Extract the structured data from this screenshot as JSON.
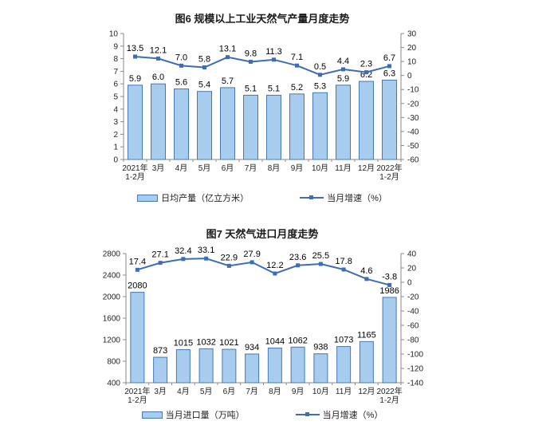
{
  "charts": [
    {
      "title": "图6 规模以上工业天然气产量月度走势",
      "legend_bar": "日均产量（亿立方米）",
      "legend_line": "当月增速（%）",
      "colors": {
        "bar_fill": "#A8CCEE",
        "bar_border": "#4678B4",
        "line": "#3C6DB5"
      },
      "chart_data": {
        "type": "combo_bar_line",
        "title": "图6 规模以上工业天然气产量月度走势",
        "categories": [
          "2021年\n1-2月",
          "3月",
          "4月",
          "5月",
          "6月",
          "7月",
          "8月",
          "9月",
          "10月",
          "11月",
          "12月",
          "2022年\n1-2月"
        ],
        "series": [
          {
            "name": "日均产量（亿立方米）",
            "type": "bar",
            "axis": "left",
            "values": [
              5.9,
              6.0,
              5.6,
              5.4,
              5.7,
              5.1,
              5.1,
              5.2,
              5.3,
              5.9,
              6.2,
              6.3
            ],
            "labels": [
              "5.9",
              "6.0",
              "5.6",
              "5.4",
              "5.7",
              "5.1",
              "5.1",
              "5.2",
              "5.3",
              "5.9",
              "6.2",
              "6.3"
            ]
          },
          {
            "name": "当月增速（%）",
            "type": "line",
            "axis": "right",
            "values": [
              13.5,
              12.1,
              7.0,
              5.8,
              13.1,
              9.8,
              11.3,
              7.1,
              0.5,
              4.4,
              2.3,
              6.7
            ],
            "labels": [
              "13.5",
              "12.1",
              "7.0",
              "5.8",
              "13.1",
              "9.8",
              "11.3",
              "7.1",
              "0.5",
              "4.4",
              "2.3",
              "6.7"
            ]
          }
        ],
        "left_axis": {
          "min": 0,
          "max": 10,
          "step": 1
        },
        "right_axis": {
          "min": -60,
          "max": 30,
          "step": 10
        },
        "grid": false,
        "legend_position": "bottom"
      }
    },
    {
      "title": "图7 天然气进口月度走势",
      "legend_bar": "当月进口量（万吨）",
      "legend_line": "当月增速（%）",
      "colors": {
        "bar_fill": "#A8CCEE",
        "bar_border": "#4678B4",
        "line": "#3C6DB5"
      },
      "chart_data": {
        "type": "combo_bar_line",
        "title": "图7 天然气进口月度走势",
        "categories": [
          "2021年\n1-2月",
          "3月",
          "4月",
          "5月",
          "6月",
          "7月",
          "8月",
          "9月",
          "10月",
          "11月",
          "12月",
          "2022年\n1-2月"
        ],
        "series": [
          {
            "name": "当月进口量（万吨）",
            "type": "bar",
            "axis": "left",
            "values": [
              2080,
              873,
              1015,
              1032,
              1021,
              934,
              1044,
              1062,
              938,
              1073,
              1165,
              1986
            ],
            "labels": [
              "2080",
              "873",
              "1015",
              "1032",
              "1021",
              "934",
              "1044",
              "1062",
              "938",
              "1073",
              "1165",
              "1986"
            ]
          },
          {
            "name": "当月增速（%）",
            "type": "line",
            "axis": "right",
            "values": [
              17.4,
              27.1,
              32.4,
              33.1,
              22.9,
              27.9,
              12.2,
              23.6,
              25.5,
              17.8,
              4.6,
              -3.8
            ],
            "labels": [
              "17.4",
              "27.1",
              "32.4",
              "33.1",
              "22.9",
              "27.9",
              "12.2",
              "23.6",
              "25.5",
              "17.8",
              "4.6",
              "-3.8"
            ]
          }
        ],
        "left_axis": {
          "min": 400,
          "max": 2800,
          "step": 400
        },
        "right_axis": {
          "min": -140,
          "max": 40,
          "step": 20
        },
        "grid": false,
        "legend_position": "bottom"
      }
    }
  ]
}
